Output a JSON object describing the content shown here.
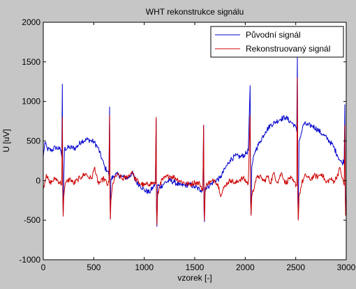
{
  "chart_data": {
    "type": "line",
    "title": "WHT rekonstrukce signálu",
    "xlabel": "vzorek [-]",
    "ylabel": "U [uV]",
    "xlim": [
      0,
      3000
    ],
    "ylim": [
      -1000,
      2000
    ],
    "xticks": [
      0,
      500,
      1000,
      1500,
      2000,
      2500,
      3000
    ],
    "yticks": [
      -1000,
      -500,
      0,
      500,
      1000,
      1500,
      2000
    ],
    "grid": false,
    "legend_position": "top-right",
    "series": [
      {
        "name": "Původní signál",
        "color": "#0000cc",
        "points": [
          [
            0,
            300
          ],
          [
            15,
            480
          ],
          [
            40,
            400
          ],
          [
            80,
            380
          ],
          [
            120,
            420
          ],
          [
            160,
            400
          ],
          [
            175,
            380
          ],
          [
            183,
            300
          ],
          [
            189,
            1220
          ],
          [
            193,
            -150
          ],
          [
            197,
            -440
          ],
          [
            203,
            60
          ],
          [
            210,
            400
          ],
          [
            260,
            420
          ],
          [
            320,
            410
          ],
          [
            380,
            500
          ],
          [
            440,
            520
          ],
          [
            500,
            490
          ],
          [
            540,
            420
          ],
          [
            580,
            280
          ],
          [
            610,
            160
          ],
          [
            640,
            120
          ],
          [
            650,
            60
          ],
          [
            657,
            930
          ],
          [
            660,
            -130
          ],
          [
            664,
            -480
          ],
          [
            670,
            20
          ],
          [
            720,
            80
          ],
          [
            780,
            50
          ],
          [
            840,
            30
          ],
          [
            880,
            100
          ],
          [
            920,
            -20
          ],
          [
            960,
            -60
          ],
          [
            1000,
            -120
          ],
          [
            1050,
            -150
          ],
          [
            1090,
            -80
          ],
          [
            1110,
            -40
          ],
          [
            1118,
            780
          ],
          [
            1121,
            -350
          ],
          [
            1125,
            -580
          ],
          [
            1132,
            -60
          ],
          [
            1160,
            -80
          ],
          [
            1200,
            -30
          ],
          [
            1250,
            0
          ],
          [
            1300,
            -20
          ],
          [
            1350,
            -60
          ],
          [
            1400,
            -60
          ],
          [
            1450,
            -50
          ],
          [
            1500,
            -80
          ],
          [
            1560,
            -120
          ],
          [
            1580,
            -120
          ],
          [
            1588,
            700
          ],
          [
            1592,
            -380
          ],
          [
            1596,
            -520
          ],
          [
            1602,
            -90
          ],
          [
            1650,
            -60
          ],
          [
            1700,
            0
          ],
          [
            1750,
            30
          ],
          [
            1800,
            150
          ],
          [
            1850,
            260
          ],
          [
            1900,
            310
          ],
          [
            1950,
            300
          ],
          [
            2000,
            330
          ],
          [
            2030,
            380
          ],
          [
            2048,
            1200
          ],
          [
            2053,
            -240
          ],
          [
            2058,
            -420
          ],
          [
            2065,
            180
          ],
          [
            2100,
            380
          ],
          [
            2150,
            500
          ],
          [
            2200,
            620
          ],
          [
            2250,
            700
          ],
          [
            2300,
            740
          ],
          [
            2350,
            780
          ],
          [
            2400,
            800
          ],
          [
            2450,
            740
          ],
          [
            2490,
            700
          ],
          [
            2510,
            620
          ],
          [
            2516,
            1560
          ],
          [
            2520,
            -200
          ],
          [
            2525,
            -480
          ],
          [
            2533,
            500
          ],
          [
            2580,
            720
          ],
          [
            2620,
            700
          ],
          [
            2670,
            690
          ],
          [
            2720,
            640
          ],
          [
            2770,
            580
          ],
          [
            2820,
            520
          ],
          [
            2870,
            440
          ],
          [
            2910,
            330
          ],
          [
            2940,
            250
          ],
          [
            2960,
            220
          ],
          [
            2980,
            260
          ],
          [
            2986,
            960
          ],
          [
            2990,
            -150
          ],
          [
            2994,
            -400
          ],
          [
            2999,
            -300
          ]
        ]
      },
      {
        "name": "Rekonstruovaný signál",
        "color": "#cc0000",
        "points": [
          [
            0,
            -110
          ],
          [
            30,
            80
          ],
          [
            60,
            -30
          ],
          [
            90,
            -10
          ],
          [
            120,
            30
          ],
          [
            160,
            -20
          ],
          [
            183,
            -40
          ],
          [
            189,
            800
          ],
          [
            193,
            -100
          ],
          [
            197,
            -450
          ],
          [
            203,
            -200
          ],
          [
            215,
            -60
          ],
          [
            240,
            0
          ],
          [
            270,
            20
          ],
          [
            300,
            -40
          ],
          [
            340,
            10
          ],
          [
            380,
            50
          ],
          [
            420,
            90
          ],
          [
            450,
            40
          ],
          [
            480,
            30
          ],
          [
            510,
            170
          ],
          [
            540,
            -30
          ],
          [
            570,
            -20
          ],
          [
            600,
            30
          ],
          [
            640,
            -60
          ],
          [
            650,
            -20
          ],
          [
            657,
            820
          ],
          [
            660,
            -140
          ],
          [
            664,
            -490
          ],
          [
            670,
            -250
          ],
          [
            690,
            -30
          ],
          [
            720,
            60
          ],
          [
            750,
            70
          ],
          [
            780,
            20
          ],
          [
            820,
            40
          ],
          [
            860,
            80
          ],
          [
            880,
            120
          ],
          [
            900,
            40
          ],
          [
            950,
            -30
          ],
          [
            1000,
            -60
          ],
          [
            1050,
            -40
          ],
          [
            1090,
            -30
          ],
          [
            1110,
            -40
          ],
          [
            1118,
            800
          ],
          [
            1121,
            -300
          ],
          [
            1125,
            -560
          ],
          [
            1132,
            -200
          ],
          [
            1160,
            -20
          ],
          [
            1200,
            30
          ],
          [
            1250,
            60
          ],
          [
            1300,
            40
          ],
          [
            1350,
            0
          ],
          [
            1400,
            -30
          ],
          [
            1450,
            -50
          ],
          [
            1500,
            -20
          ],
          [
            1550,
            -40
          ],
          [
            1580,
            -120
          ],
          [
            1588,
            700
          ],
          [
            1592,
            -300
          ],
          [
            1596,
            -500
          ],
          [
            1602,
            -150
          ],
          [
            1620,
            -30
          ],
          [
            1660,
            -20
          ],
          [
            1700,
            10
          ],
          [
            1740,
            -80
          ],
          [
            1760,
            -200
          ],
          [
            1780,
            -120
          ],
          [
            1800,
            -60
          ],
          [
            1830,
            -20
          ],
          [
            1860,
            10
          ],
          [
            1900,
            -40
          ],
          [
            1940,
            10
          ],
          [
            1980,
            30
          ],
          [
            2030,
            -40
          ],
          [
            2048,
            820
          ],
          [
            2053,
            -200
          ],
          [
            2058,
            -440
          ],
          [
            2065,
            -200
          ],
          [
            2100,
            -10
          ],
          [
            2130,
            60
          ],
          [
            2160,
            30
          ],
          [
            2190,
            -10
          ],
          [
            2220,
            60
          ],
          [
            2250,
            -30
          ],
          [
            2280,
            90
          ],
          [
            2320,
            -20
          ],
          [
            2360,
            100
          ],
          [
            2400,
            -40
          ],
          [
            2440,
            40
          ],
          [
            2480,
            -20
          ],
          [
            2510,
            -60
          ],
          [
            2516,
            1300
          ],
          [
            2520,
            -150
          ],
          [
            2525,
            -500
          ],
          [
            2533,
            -200
          ],
          [
            2560,
            -30
          ],
          [
            2600,
            70
          ],
          [
            2640,
            10
          ],
          [
            2680,
            60
          ],
          [
            2720,
            50
          ],
          [
            2760,
            90
          ],
          [
            2800,
            -30
          ],
          [
            2840,
            20
          ],
          [
            2880,
            -10
          ],
          [
            2910,
            60
          ],
          [
            2940,
            160
          ],
          [
            2960,
            30
          ],
          [
            2980,
            -60
          ],
          [
            2986,
            700
          ],
          [
            2990,
            -100
          ],
          [
            2994,
            -440
          ],
          [
            2999,
            -200
          ]
        ]
      }
    ]
  }
}
